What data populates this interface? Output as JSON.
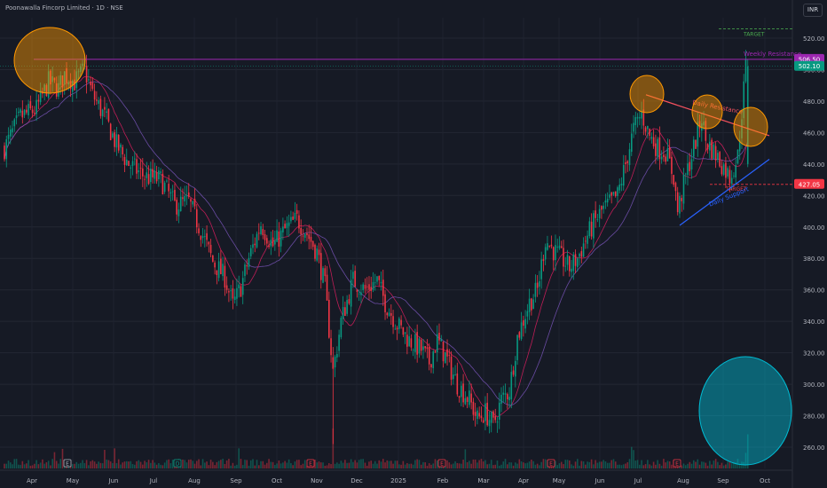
{
  "header": {
    "title": "Poonawalla Fincorp Limited · 1D · NSE",
    "currency": "INR"
  },
  "chart_data": {
    "type": "candlestick",
    "title": "Poonawalla Fincorp Limited · 1D · NSE",
    "y_axis_ticks": [
      260,
      280,
      300,
      320,
      340,
      360,
      380,
      400,
      420,
      440,
      460,
      480,
      500,
      520
    ],
    "y_range": [
      247,
      530
    ],
    "x_ticks": [
      "Apr",
      "May",
      "Jun",
      "Jul",
      "Aug",
      "Sep",
      "Oct",
      "Nov",
      "Dec",
      "2025",
      "Feb",
      "Mar",
      "Apr",
      "May",
      "Jun",
      "Jul",
      "Aug",
      "Sep",
      "Oct"
    ],
    "price_labels": [
      {
        "text": "506.50",
        "value": 506.5,
        "color": "#9c27b0"
      },
      {
        "text": "502.10",
        "value": 502.1,
        "color": "#089981"
      },
      {
        "text": "427.05",
        "value": 427.05,
        "color": "#f23645"
      }
    ],
    "annotations": {
      "weekly_resistance": {
        "text": "Weekly Resistance",
        "value": 506.5,
        "color": "#9c27b0"
      },
      "daily_resistance": {
        "text": "Daily Resistance",
        "color": "#f7525f"
      },
      "daily_support": {
        "text": "Daily Support",
        "color": "#2962ff"
      },
      "target_top": {
        "text": "TARGET",
        "value": 526,
        "color": "#4caf50"
      },
      "target_mid": {
        "text": "TARGET",
        "value": 427.05,
        "color": "#f23645"
      }
    },
    "events": [
      {
        "month": "May",
        "text": "E"
      },
      {
        "month": "Jul",
        "text": "D"
      },
      {
        "month": "Nov",
        "text": "E"
      },
      {
        "month": "Feb",
        "text": "E"
      },
      {
        "month": "May",
        "text": "E"
      },
      {
        "month": "Aug",
        "text": "E"
      }
    ],
    "price_path": [
      [
        0,
        450
      ],
      [
        8,
        470
      ],
      [
        16,
        475
      ],
      [
        22,
        492
      ],
      [
        27,
        488
      ],
      [
        30,
        497
      ],
      [
        35,
        492
      ],
      [
        40,
        500
      ],
      [
        44,
        484
      ],
      [
        50,
        470
      ],
      [
        56,
        452
      ],
      [
        62,
        440
      ],
      [
        70,
        432
      ],
      [
        78,
        430
      ],
      [
        85,
        414
      ],
      [
        92,
        416
      ],
      [
        98,
        398
      ],
      [
        104,
        378
      ],
      [
        110,
        368
      ],
      [
        114,
        350
      ],
      [
        118,
        362
      ],
      [
        122,
        380
      ],
      [
        128,
        402
      ],
      [
        134,
        388
      ],
      [
        140,
        398
      ],
      [
        146,
        405
      ],
      [
        150,
        398
      ],
      [
        156,
        384
      ],
      [
        160,
        362
      ],
      [
        164,
        308
      ],
      [
        168,
        340
      ],
      [
        174,
        366
      ],
      [
        180,
        360
      ],
      [
        186,
        366
      ],
      [
        190,
        352
      ],
      [
        196,
        338
      ],
      [
        202,
        328
      ],
      [
        208,
        322
      ],
      [
        212,
        314
      ],
      [
        216,
        328
      ],
      [
        220,
        318
      ],
      [
        226,
        300
      ],
      [
        232,
        290
      ],
      [
        236,
        278
      ],
      [
        240,
        282
      ],
      [
        244,
        274
      ],
      [
        248,
        290
      ],
      [
        252,
        296
      ],
      [
        256,
        330
      ],
      [
        262,
        352
      ],
      [
        266,
        360
      ],
      [
        270,
        392
      ],
      [
        274,
        385
      ],
      [
        278,
        380
      ],
      [
        282,
        374
      ],
      [
        286,
        380
      ],
      [
        290,
        392
      ],
      [
        294,
        402
      ],
      [
        298,
        410
      ],
      [
        302,
        415
      ],
      [
        306,
        420
      ],
      [
        310,
        440
      ],
      [
        314,
        462
      ],
      [
        318,
        472
      ],
      [
        322,
        458
      ],
      [
        326,
        450
      ],
      [
        330,
        448
      ],
      [
        334,
        432
      ],
      [
        336,
        410
      ],
      [
        340,
        432
      ],
      [
        344,
        450
      ],
      [
        348,
        470
      ],
      [
        350,
        455
      ],
      [
        354,
        448
      ],
      [
        358,
        440
      ],
      [
        362,
        432
      ],
      [
        366,
        445
      ],
      [
        370,
        502
      ]
    ],
    "total_days": 372,
    "ma_short_lag": 4,
    "ma_long_lag": 9,
    "volume_level": "low with spikes",
    "grid": true,
    "legend": "none"
  }
}
